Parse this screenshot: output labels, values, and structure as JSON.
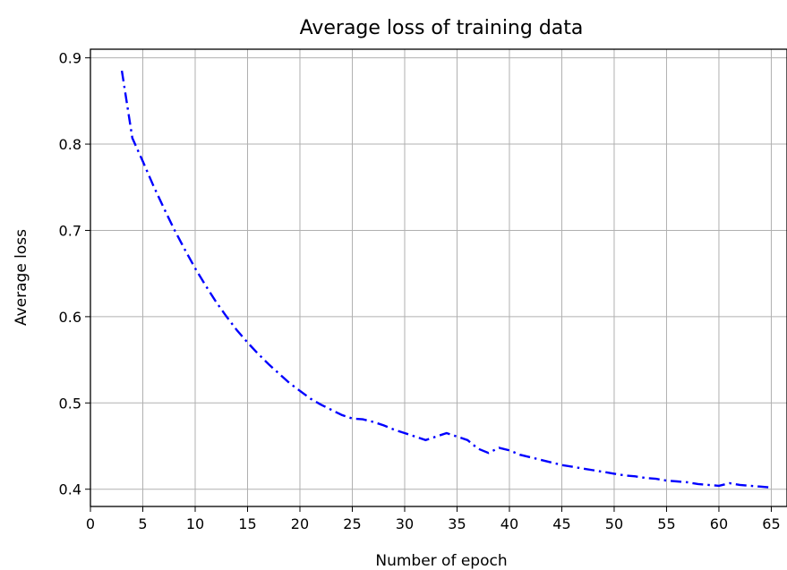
{
  "chart_data": {
    "type": "line",
    "title": "Average loss of training data",
    "xlabel": "Number of epoch",
    "ylabel": "Average loss",
    "xlim": [
      0,
      66.5
    ],
    "ylim": [
      0.38,
      0.91
    ],
    "xticks": [
      0,
      5,
      10,
      15,
      20,
      25,
      30,
      35,
      40,
      45,
      50,
      55,
      60,
      65
    ],
    "xtick_labels": [
      "0",
      "5",
      "10",
      "15",
      "20",
      "25",
      "30",
      "35",
      "40",
      "45",
      "50",
      "55",
      "60",
      "65"
    ],
    "yticks": [
      0.4,
      0.5,
      0.6,
      0.7,
      0.8,
      0.9
    ],
    "ytick_labels": [
      "0.4",
      "0.5",
      "0.6",
      "0.7",
      "0.8",
      "0.9"
    ],
    "grid": true,
    "line_color": "#0000ff",
    "line_style": "dash-dot",
    "series": [
      {
        "x": [
          3,
          4,
          5,
          6,
          7,
          8,
          9,
          10,
          11,
          12,
          13,
          14,
          15,
          16,
          17,
          18,
          19,
          20,
          21,
          22,
          23,
          24,
          25,
          26,
          27,
          28,
          29,
          30,
          31,
          32,
          33,
          34,
          35,
          36,
          37,
          38,
          39,
          40,
          41,
          42,
          43,
          44,
          45,
          46,
          47,
          48,
          49,
          50,
          51,
          52,
          53,
          54,
          55,
          56,
          57,
          58,
          59,
          60,
          61,
          62,
          63,
          64,
          65
        ],
        "values": [
          0.885,
          0.807,
          0.78,
          0.752,
          0.726,
          0.701,
          0.678,
          0.656,
          0.636,
          0.617,
          0.6,
          0.584,
          0.57,
          0.557,
          0.545,
          0.534,
          0.523,
          0.514,
          0.505,
          0.498,
          0.492,
          0.486,
          0.482,
          0.481,
          0.478,
          0.474,
          0.469,
          0.465,
          0.461,
          0.457,
          0.461,
          0.465,
          0.461,
          0.457,
          0.447,
          0.442,
          0.448,
          0.445,
          0.44,
          0.437,
          0.434,
          0.431,
          0.428,
          0.426,
          0.424,
          0.422,
          0.42,
          0.418,
          0.416,
          0.415,
          0.413,
          0.412,
          0.41,
          0.409,
          0.408,
          0.406,
          0.405,
          0.404,
          0.407,
          0.405,
          0.404,
          0.403,
          0.402
        ]
      }
    ]
  }
}
